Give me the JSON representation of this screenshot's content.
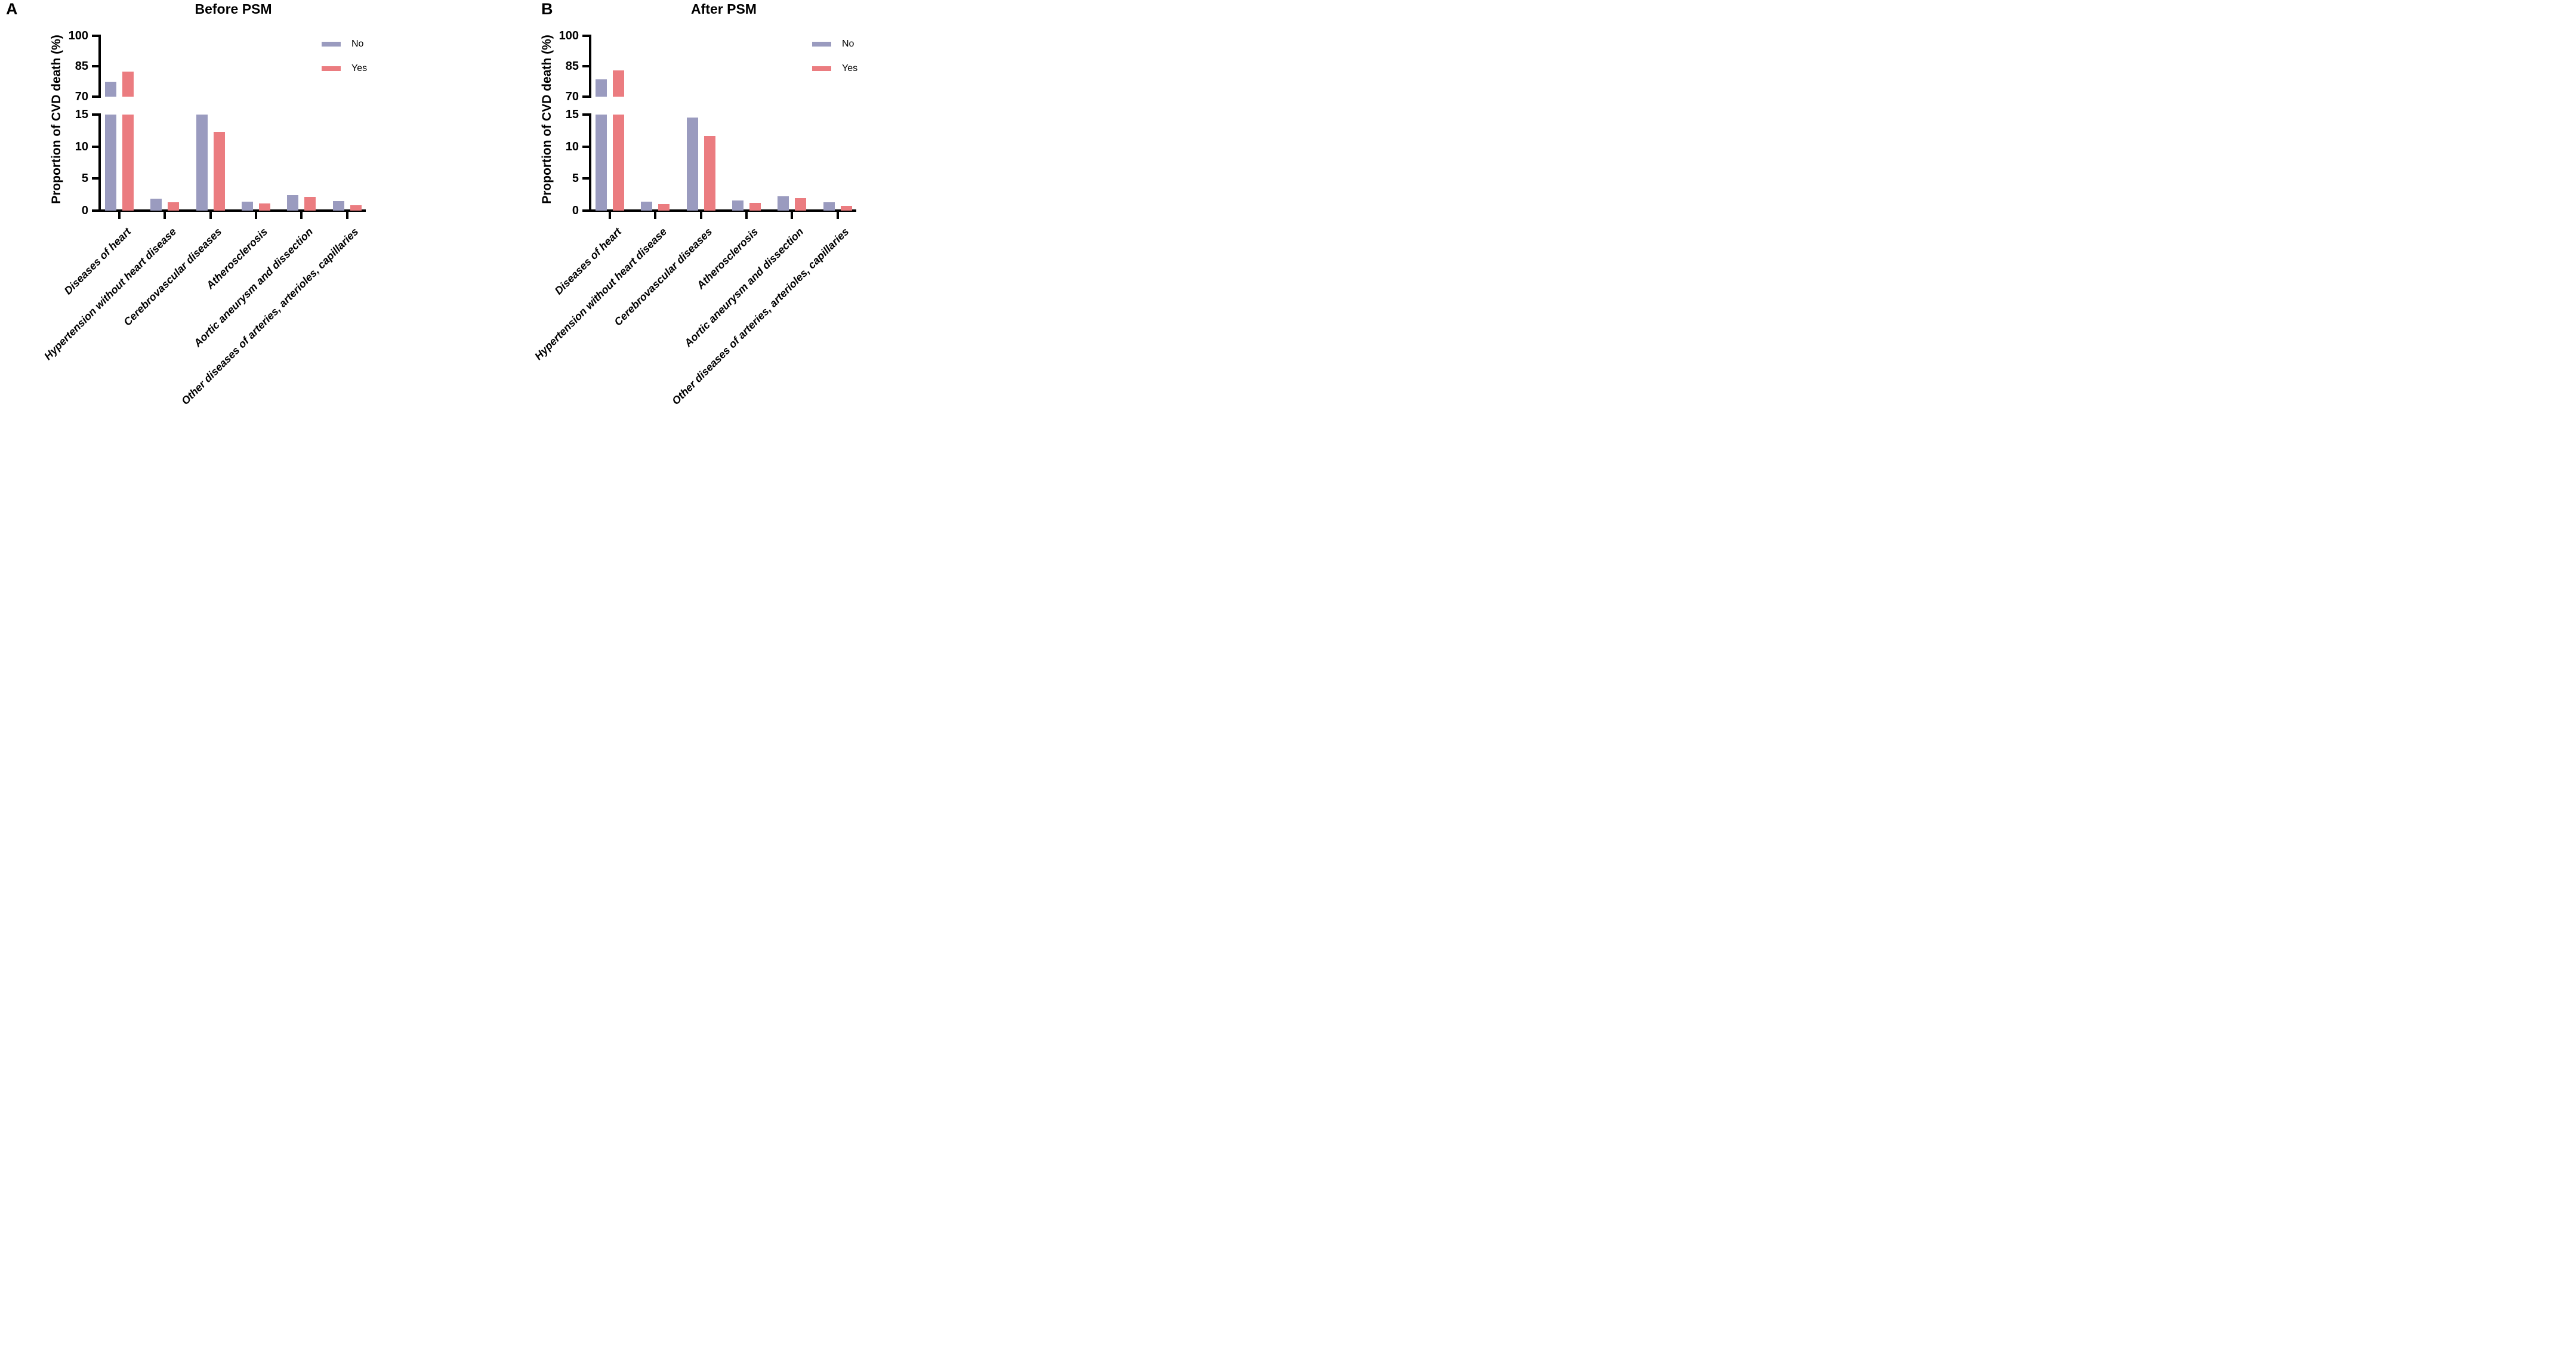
{
  "colors": {
    "no": "#9A9BBF",
    "yes": "#EB7C80",
    "axis": "#000000",
    "background": "#FFFFFF"
  },
  "chart_data": [
    {
      "type": "bar",
      "panel_label": "A",
      "title": "Before PSM",
      "xlabel": "",
      "ylabel": "Proportion of CVD death (%)",
      "grid": false,
      "legend_position": "top-right",
      "y_axis": {
        "broken": true,
        "break_between": [
          15,
          70
        ],
        "lower_segment": {
          "range": [
            0,
            15
          ],
          "ticks": [
            0,
            5,
            10,
            15
          ]
        },
        "upper_segment": {
          "range": [
            70,
            100
          ],
          "ticks": [
            70,
            85,
            100
          ]
        }
      },
      "categories": [
        "Diseases of heart",
        "Hypertension without heart disease",
        "Cerebrovascular diseases",
        "Atherosclerosis",
        "Aortic aneurysm and dissection",
        "Other diseases of arteries, arterioles, capillaries"
      ],
      "series": [
        {
          "name": "No",
          "color": "#9A9BBF",
          "values": [
            77.3,
            1.9,
            15.0,
            1.4,
            2.4,
            1.5
          ]
        },
        {
          "name": "Yes",
          "color": "#EB7C80",
          "values": [
            82.3,
            1.3,
            12.3,
            1.1,
            2.1,
            0.8
          ]
        }
      ]
    },
    {
      "type": "bar",
      "panel_label": "B",
      "title": "After PSM",
      "xlabel": "",
      "ylabel": "Proportion of CVD death (%)",
      "grid": false,
      "legend_position": "top-right",
      "y_axis": {
        "broken": true,
        "break_between": [
          15,
          70
        ],
        "lower_segment": {
          "range": [
            0,
            15
          ],
          "ticks": [
            0,
            5,
            10,
            15
          ]
        },
        "upper_segment": {
          "range": [
            70,
            100
          ],
          "ticks": [
            70,
            85,
            100
          ]
        }
      },
      "categories": [
        "Diseases of heart",
        "Hypertension without heart disease",
        "Cerebrovascular diseases",
        "Atherosclerosis",
        "Aortic aneurysm and dissection",
        "Other diseases of arteries, arterioles, capillaries"
      ],
      "series": [
        {
          "name": "No",
          "color": "#9A9BBF",
          "values": [
            78.5,
            1.4,
            14.5,
            1.6,
            2.2,
            1.3
          ]
        },
        {
          "name": "Yes",
          "color": "#EB7C80",
          "values": [
            83.0,
            1.0,
            11.6,
            1.2,
            2.0,
            0.7
          ]
        }
      ]
    }
  ]
}
